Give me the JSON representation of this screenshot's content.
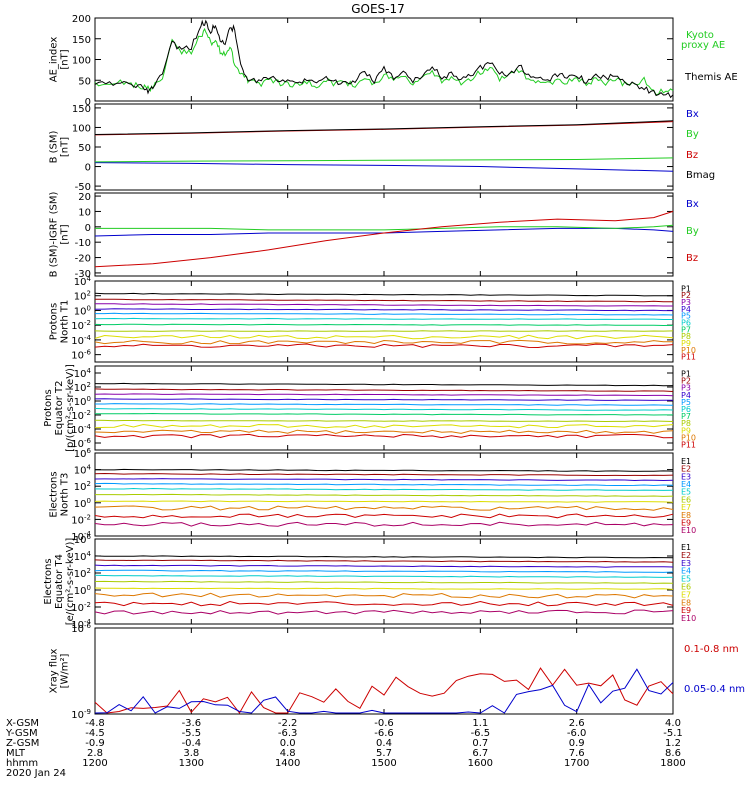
{
  "title": "GOES-17",
  "colors": {
    "black": "#000000",
    "green": "#22cc22",
    "red": "#cc0000",
    "blue": "#0000cc",
    "darkred": "#990000",
    "purple": "#8800aa",
    "indigo": "#3300cc",
    "sky": "#0099ff",
    "cyan": "#00cccc",
    "lime": "#00cc66",
    "yellowgreen": "#aacc00",
    "yellow": "#dddd00",
    "orange": "#dd7700",
    "magenta": "#aa0066"
  },
  "x_axis": {
    "range": [
      1200,
      1800
    ],
    "ticks": [
      1200,
      1300,
      1400,
      1500,
      1600,
      1700,
      1800
    ],
    "rows": [
      {
        "label": "X-GSM",
        "values": [
          "-4.8",
          "-3.6",
          "-2.2",
          "-0.6",
          "1.1",
          "2.6",
          "4.0"
        ]
      },
      {
        "label": "Y-GSM",
        "values": [
          "-4.5",
          "-5.5",
          "-6.3",
          "-6.6",
          "-6.5",
          "-6.0",
          "-5.1"
        ]
      },
      {
        "label": "Z-GSM",
        "values": [
          "-0.9",
          "-0.4",
          "0.0",
          "0.4",
          "0.7",
          "0.9",
          "1.2"
        ]
      },
      {
        "label": "MLT",
        "values": [
          "2.8",
          "3.8",
          "4.8",
          "5.7",
          "6.7",
          "7.6",
          "8.6"
        ]
      },
      {
        "label": "hhmm",
        "values": [
          "1200",
          "1300",
          "1400",
          "1500",
          "1600",
          "1700",
          "1800"
        ]
      }
    ],
    "date": "2020 Jan 24"
  },
  "chart_data": [
    {
      "type": "line",
      "ylabel": [
        "AE_index",
        "[nT]"
      ],
      "ylim": [
        0,
        200
      ],
      "yticks": [
        {
          "v": 0,
          "t": "0"
        },
        {
          "v": 50,
          "t": "50"
        },
        {
          "v": 100,
          "t": "100"
        },
        {
          "v": 150,
          "t": "150"
        },
        {
          "v": 200,
          "t": "200"
        }
      ],
      "x": [
        1200,
        1215,
        1230,
        1240,
        1250,
        1255,
        1260,
        1270,
        1280,
        1290,
        1300,
        1310,
        1315,
        1320,
        1325,
        1330,
        1335,
        1340,
        1345,
        1350,
        1355,
        1360,
        1370,
        1380,
        1390,
        1400,
        1410,
        1420,
        1430,
        1440,
        1450,
        1460,
        1470,
        1480,
        1490,
        1500,
        1510,
        1520,
        1530,
        1540,
        1550,
        1560,
        1570,
        1580,
        1590,
        1600,
        1610,
        1620,
        1630,
        1640,
        1650,
        1660,
        1670,
        1680,
        1690,
        1700,
        1710,
        1720,
        1730,
        1740,
        1750,
        1760,
        1770,
        1780,
        1790,
        1800
      ],
      "series": [
        {
          "name": "Kyoto proxy AE",
          "color": "#22cc22",
          "values": [
            40,
            40,
            45,
            38,
            35,
            30,
            32,
            60,
            145,
            120,
            115,
            160,
            170,
            140,
            145,
            120,
            110,
            135,
            90,
            65,
            55,
            50,
            40,
            50,
            45,
            40,
            40,
            45,
            35,
            50,
            40,
            45,
            38,
            55,
            40,
            65,
            50,
            60,
            40,
            55,
            75,
            45,
            55,
            45,
            55,
            70,
            80,
            55,
            60,
            75,
            55,
            45,
            40,
            55,
            45,
            55,
            40,
            55,
            45,
            55,
            40,
            40,
            55,
            20,
            25,
            25
          ]
        },
        {
          "name": "Themis AE",
          "color": "#000000",
          "values": [
            45,
            42,
            48,
            40,
            33,
            25,
            28,
            65,
            140,
            125,
            130,
            185,
            190,
            165,
            185,
            150,
            130,
            175,
            175,
            100,
            60,
            55,
            45,
            60,
            50,
            45,
            45,
            55,
            40,
            60,
            45,
            50,
            45,
            75,
            45,
            80,
            55,
            70,
            45,
            65,
            85,
            55,
            65,
            55,
            65,
            80,
            90,
            70,
            65,
            85,
            65,
            55,
            45,
            65,
            55,
            65,
            45,
            60,
            55,
            65,
            45,
            40,
            30,
            20,
            15,
            15
          ]
        }
      ]
    },
    {
      "type": "line",
      "ylabel": [
        "B (SM)",
        "[nT]"
      ],
      "ylim": [
        -60,
        160
      ],
      "yticks": [
        {
          "v": -50,
          "t": "-50"
        },
        {
          "v": 0,
          "t": "0"
        },
        {
          "v": 50,
          "t": "50"
        },
        {
          "v": 100,
          "t": "100"
        },
        {
          "v": 150,
          "t": "150"
        }
      ],
      "x": [
        1200,
        1300,
        1400,
        1500,
        1600,
        1700,
        1800
      ],
      "series": [
        {
          "name": "Bx",
          "color": "#0000cc",
          "values": [
            10,
            8,
            5,
            3,
            0,
            -6,
            -12
          ]
        },
        {
          "name": "By",
          "color": "#22cc22",
          "values": [
            12,
            14,
            15,
            16,
            17,
            18,
            22
          ]
        },
        {
          "name": "Bz",
          "color": "#cc0000",
          "values": [
            81,
            85,
            91,
            95,
            101,
            106,
            115
          ]
        },
        {
          "name": "Bmag",
          "color": "#000000",
          "values": [
            82,
            86,
            92,
            96,
            102,
            107,
            117
          ]
        }
      ]
    },
    {
      "type": "line",
      "ylabel": [
        "B (SM)-IGRF (SM)",
        "[nT]"
      ],
      "ylim": [
        -32,
        22
      ],
      "yticks": [
        {
          "v": -30,
          "t": "-30"
        },
        {
          "v": -20,
          "t": "-20"
        },
        {
          "v": -10,
          "t": "-10"
        },
        {
          "v": 0,
          "t": "0"
        },
        {
          "v": 10,
          "t": "10"
        },
        {
          "v": 20,
          "t": "20"
        }
      ],
      "x": [
        1200,
        1260,
        1320,
        1380,
        1440,
        1500,
        1560,
        1620,
        1680,
        1740,
        1780,
        1800
      ],
      "series": [
        {
          "name": "Bx",
          "color": "#0000cc",
          "values": [
            -6,
            -5,
            -5,
            -4,
            -4,
            -4,
            -3,
            -2,
            -1,
            -1,
            -2,
            -3
          ]
        },
        {
          "name": "By",
          "color": "#22cc22",
          "values": [
            -1,
            -1,
            -1,
            -2,
            -2,
            -2,
            -1,
            0,
            0,
            -1,
            0,
            1
          ]
        },
        {
          "name": "Bz",
          "color": "#cc0000",
          "values": [
            -26,
            -24,
            -20,
            -15,
            -9,
            -4,
            0,
            3,
            5,
            4,
            6,
            10
          ]
        }
      ]
    },
    {
      "type": "line",
      "ylabel": [
        "Protons",
        "North T1"
      ],
      "ylog": [
        -7,
        4
      ],
      "yticks": [
        {
          "e": 4
        },
        {
          "e": 2
        },
        {
          "e": 0
        },
        {
          "e": -2
        },
        {
          "e": -4
        },
        {
          "e": -6
        }
      ],
      "x": [
        1200,
        1800
      ],
      "series": [
        {
          "name": "P1",
          "color": "#000000",
          "values": [
            2.3,
            2.0
          ]
        },
        {
          "name": "P2",
          "color": "#990000",
          "values": [
            1.5,
            1.2
          ]
        },
        {
          "name": "P3",
          "color": "#8800aa",
          "values": [
            0.9,
            0.6
          ]
        },
        {
          "name": "P4",
          "color": "#3300cc",
          "values": [
            0.2,
            0.0
          ]
        },
        {
          "name": "P5",
          "color": "#0099ff",
          "values": [
            -0.4,
            -0.6
          ]
        },
        {
          "name": "P6",
          "color": "#00cccc",
          "values": [
            -1.1,
            -1.2
          ]
        },
        {
          "name": "P7",
          "color": "#00cc66",
          "values": [
            -1.9,
            -2.0
          ]
        },
        {
          "name": "P8",
          "color": "#aacc00",
          "values": [
            -2.8,
            -2.8
          ]
        },
        {
          "name": "P9",
          "color": "#dddd00",
          "values": [
            -3.6,
            -3.6
          ]
        },
        {
          "name": "P10",
          "color": "#dd7700",
          "values": [
            -4.3,
            -4.3
          ]
        },
        {
          "name": "P11",
          "color": "#cc0000",
          "values": [
            -4.8,
            -4.8
          ]
        }
      ]
    },
    {
      "type": "line",
      "ylabel": [
        "Protons",
        "Equator T2",
        "[p/(cm²-s-sr-keV)]"
      ],
      "ylog": [
        -7,
        5
      ],
      "yticks": [
        {
          "e": 4
        },
        {
          "e": 2
        },
        {
          "e": 0
        },
        {
          "e": -2
        },
        {
          "e": -4
        },
        {
          "e": -6
        }
      ],
      "x": [
        1200,
        1800
      ],
      "series": [
        {
          "name": "P1",
          "color": "#000000",
          "values": [
            2.5,
            2.2
          ]
        },
        {
          "name": "P2",
          "color": "#990000",
          "values": [
            1.7,
            1.4
          ]
        },
        {
          "name": "P3",
          "color": "#8800aa",
          "values": [
            1.0,
            0.8
          ]
        },
        {
          "name": "P4",
          "color": "#3300cc",
          "values": [
            0.3,
            0.1
          ]
        },
        {
          "name": "P5",
          "color": "#0099ff",
          "values": [
            -0.4,
            -0.6
          ]
        },
        {
          "name": "P6",
          "color": "#00cccc",
          "values": [
            -1.1,
            -1.3
          ]
        },
        {
          "name": "P7",
          "color": "#00cc66",
          "values": [
            -1.8,
            -2.0
          ]
        },
        {
          "name": "P8",
          "color": "#aacc00",
          "values": [
            -2.8,
            -2.9
          ]
        },
        {
          "name": "P9",
          "color": "#dddd00",
          "values": [
            -3.6,
            -3.6
          ]
        },
        {
          "name": "P10",
          "color": "#dd7700",
          "values": [
            -4.4,
            -4.4
          ]
        },
        {
          "name": "P11",
          "color": "#cc0000",
          "values": [
            -5.0,
            -5.0
          ]
        }
      ]
    },
    {
      "type": "line",
      "ylabel": [
        "Electrons",
        "North T3"
      ],
      "ylog": [
        -4,
        6
      ],
      "yticks": [
        {
          "e": 6
        },
        {
          "e": 4
        },
        {
          "e": 2
        },
        {
          "e": 0
        },
        {
          "e": -2
        },
        {
          "e": -4
        }
      ],
      "x": [
        1200,
        1800
      ],
      "series": [
        {
          "name": "E1",
          "color": "#000000",
          "values": [
            4.0,
            3.8
          ]
        },
        {
          "name": "E2",
          "color": "#990000",
          "values": [
            3.5,
            3.3
          ]
        },
        {
          "name": "E3",
          "color": "#3300cc",
          "values": [
            2.9,
            2.7
          ]
        },
        {
          "name": "E4",
          "color": "#0099ff",
          "values": [
            2.3,
            2.1
          ]
        },
        {
          "name": "E5",
          "color": "#00cccc",
          "values": [
            1.7,
            1.5
          ]
        },
        {
          "name": "E6",
          "color": "#aacc00",
          "values": [
            1.0,
            0.8
          ]
        },
        {
          "name": "E7",
          "color": "#dddd00",
          "values": [
            0.2,
            0.1
          ]
        },
        {
          "name": "E8",
          "color": "#dd7700",
          "values": [
            -0.6,
            -0.7
          ]
        },
        {
          "name": "E9",
          "color": "#cc0000",
          "values": [
            -1.6,
            -1.6
          ]
        },
        {
          "name": "E10",
          "color": "#aa0066",
          "values": [
            -2.6,
            -2.6
          ]
        }
      ]
    },
    {
      "type": "line",
      "ylabel": [
        "Electrons",
        "Equator T4",
        "[e/(cm²-s-sr-keV)]"
      ],
      "ylog": [
        -4,
        6
      ],
      "yticks": [
        {
          "e": 6
        },
        {
          "e": 4
        },
        {
          "e": 2
        },
        {
          "e": 0
        },
        {
          "e": -2
        },
        {
          "e": -4
        }
      ],
      "x": [
        1200,
        1800
      ],
      "series": [
        {
          "name": "E1",
          "color": "#000000",
          "values": [
            4.0,
            3.8
          ]
        },
        {
          "name": "E2",
          "color": "#990000",
          "values": [
            3.5,
            3.3
          ]
        },
        {
          "name": "E3",
          "color": "#3300cc",
          "values": [
            2.9,
            2.7
          ]
        },
        {
          "name": "E4",
          "color": "#0099ff",
          "values": [
            2.3,
            2.1
          ]
        },
        {
          "name": "E5",
          "color": "#00cccc",
          "values": [
            1.7,
            1.5
          ]
        },
        {
          "name": "E6",
          "color": "#aacc00",
          "values": [
            1.0,
            0.8
          ]
        },
        {
          "name": "E7",
          "color": "#dddd00",
          "values": [
            0.2,
            0.1
          ]
        },
        {
          "name": "E8",
          "color": "#dd7700",
          "values": [
            -0.6,
            -0.7
          ]
        },
        {
          "name": "E9",
          "color": "#cc0000",
          "values": [
            -1.6,
            -1.6
          ]
        },
        {
          "name": "E10",
          "color": "#aa0066",
          "values": [
            -2.6,
            -2.6
          ]
        }
      ]
    },
    {
      "type": "line",
      "ylabel": [
        "Xray flux",
        "[W/m²]"
      ],
      "ylog": [
        -9,
        -6
      ],
      "yticks": [
        {
          "e": -6
        },
        {
          "e": -9
        }
      ],
      "x": [
        1200,
        1250,
        1300,
        1350,
        1400,
        1450,
        1500,
        1550,
        1600,
        1650,
        1700,
        1750,
        1800
      ],
      "series": [
        {
          "name": "0.1-0.8 nm",
          "color": "#cc0000",
          "values": [
            -8.9,
            -8.8,
            -8.6,
            -8.7,
            -8.6,
            -8.5,
            -8.2,
            -7.9,
            -7.8,
            -7.7,
            -7.9,
            -8.2,
            -8.3
          ]
        },
        {
          "name": "0.05-0.4 nm",
          "color": "#0000cc",
          "values": [
            -9.1,
            -8.7,
            -8.5,
            -8.6,
            -8.8,
            -9.2,
            -9.4,
            -9.4,
            -9.3,
            -8.2,
            -8.5,
            -7.8,
            -7.9
          ]
        }
      ]
    }
  ]
}
